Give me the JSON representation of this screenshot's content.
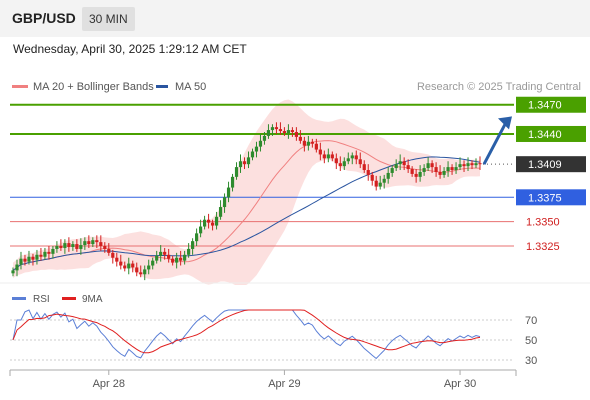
{
  "header": {
    "symbol": "GBP/USD",
    "timeframe": "30 MIN",
    "datetime": "Wednesday, April 30, 2025 1:29:12 AM CET"
  },
  "colors": {
    "support": "#3060e0",
    "target": "#4aa000",
    "resistance_line": "#e87070",
    "bollinger_fill": "#fbd6d4",
    "ma20": "#f08080",
    "ma50": "#2a55a0",
    "candle_up": "#2e8b2e",
    "candle_down": "#d32020",
    "arrow": "#2a5fa8",
    "rsi": "#5b7fd6",
    "rsi_ma": "#e02020",
    "current_price_bg": "#333333"
  },
  "chart_data": [
    {
      "type": "candlestick",
      "legend": [
        {
          "label": "MA 20 + Bollinger Bands",
          "color": "#f08080"
        },
        {
          "label": "MA 50",
          "color": "#2a55a0"
        }
      ],
      "credit": "Research © 2025 Trading Central",
      "ylim": [
        1.3285,
        1.348
      ],
      "x_ticks": [
        {
          "label": "Apr 28",
          "index": 24
        },
        {
          "label": "Apr 29",
          "index": 68
        },
        {
          "label": "Apr 30",
          "index": 112
        }
      ],
      "levels": [
        {
          "value": 1.347,
          "label": "1.3470",
          "kind": "target"
        },
        {
          "value": 1.344,
          "label": "1.3440",
          "kind": "target"
        },
        {
          "value": 1.3409,
          "label": "1.3409",
          "kind": "current"
        },
        {
          "value": 1.3375,
          "label": "1.3375",
          "kind": "support"
        },
        {
          "value": 1.335,
          "label": "1.3350",
          "kind": "resistance"
        },
        {
          "value": 1.3325,
          "label": "1.3325",
          "kind": "resistance"
        }
      ],
      "projection": {
        "from": 1.3409,
        "to": 1.3458
      },
      "close": [
        1.33,
        1.3306,
        1.3312,
        1.3309,
        1.3314,
        1.3311,
        1.3316,
        1.3314,
        1.3319,
        1.3317,
        1.3322,
        1.3325,
        1.3323,
        1.3328,
        1.3324,
        1.3327,
        1.3322,
        1.3326,
        1.333,
        1.3327,
        1.3331,
        1.3329,
        1.3325,
        1.3322,
        1.3318,
        1.3313,
        1.3309,
        1.3305,
        1.3302,
        1.3307,
        1.3303,
        1.3298,
        1.3296,
        1.3301,
        1.3305,
        1.331,
        1.3315,
        1.3319,
        1.3316,
        1.3312,
        1.3308,
        1.3313,
        1.331,
        1.3316,
        1.3322,
        1.333,
        1.3338,
        1.3345,
        1.3352,
        1.3349,
        1.3346,
        1.3355,
        1.3365,
        1.3375,
        1.3385,
        1.3396,
        1.3406,
        1.3412,
        1.3409,
        1.3416,
        1.3422,
        1.3427,
        1.3433,
        1.3438,
        1.3444,
        1.3447,
        1.3445,
        1.3443,
        1.3441,
        1.3444,
        1.3442,
        1.3437,
        1.3433,
        1.3428,
        1.3432,
        1.343,
        1.3424,
        1.3419,
        1.3415,
        1.3419,
        1.3415,
        1.341,
        1.3407,
        1.3412,
        1.3415,
        1.3418,
        1.3414,
        1.3409,
        1.3403,
        1.3398,
        1.3392,
        1.3386,
        1.339,
        1.3394,
        1.34,
        1.3405,
        1.3409,
        1.3412,
        1.3408,
        1.3404,
        1.3399,
        1.3396,
        1.3401,
        1.3405,
        1.341,
        1.3406,
        1.3401,
        1.3398,
        1.3402,
        1.3406,
        1.3403,
        1.3406,
        1.3409,
        1.3407,
        1.341,
        1.3408,
        1.341,
        1.3409
      ],
      "rsi_ylim": [
        20,
        80
      ],
      "rsi_ticks": [
        70,
        50,
        30
      ],
      "rsi_legend": [
        {
          "label": "RSI",
          "color": "#5b7fd6"
        },
        {
          "label": "9MA",
          "color": "#e02020"
        }
      ]
    }
  ]
}
